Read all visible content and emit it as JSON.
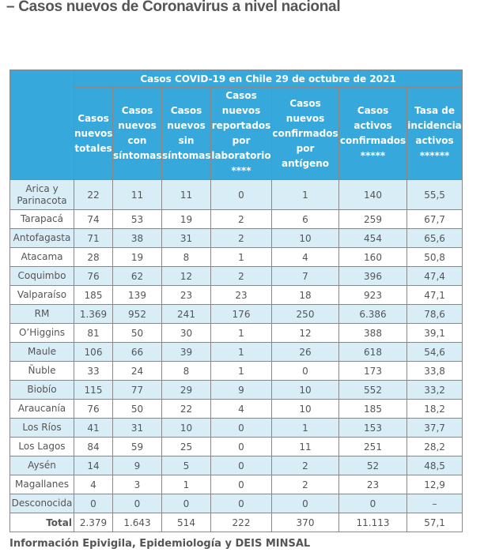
{
  "page_title": "– Casos nuevos de Coronavirus a nivel nacional",
  "table": {
    "caption": "Casos COVID-19 en Chile 29 de octubre de 2021",
    "headers": [
      "Casos nuevos totales",
      "Casos nuevos con síntomas",
      "Casos nuevos sin síntomas",
      "Casos nuevos reportados por laboratorio ****",
      "Casos nuevos confirmados por antígeno",
      "Casos activos confirmados *****",
      "Tasa de incidencia activos ******"
    ],
    "rows": [
      {
        "region": "Arica y Parinacota",
        "values": [
          "22",
          "11",
          "11",
          "0",
          "1",
          "140",
          "55,5"
        ]
      },
      {
        "region": "Tarapacá",
        "values": [
          "74",
          "53",
          "19",
          "2",
          "6",
          "259",
          "67,7"
        ]
      },
      {
        "region": "Antofagasta",
        "values": [
          "71",
          "38",
          "31",
          "2",
          "10",
          "454",
          "65,6"
        ]
      },
      {
        "region": "Atacama",
        "values": [
          "28",
          "19",
          "8",
          "1",
          "4",
          "160",
          "50,8"
        ]
      },
      {
        "region": "Coquimbo",
        "values": [
          "76",
          "62",
          "12",
          "2",
          "7",
          "396",
          "47,4"
        ]
      },
      {
        "region": "Valparaíso",
        "values": [
          "185",
          "139",
          "23",
          "23",
          "18",
          "923",
          "47,1"
        ]
      },
      {
        "region": "RM",
        "values": [
          "1.369",
          "952",
          "241",
          "176",
          "250",
          "6.386",
          "78,6"
        ]
      },
      {
        "region": "O’Higgins",
        "values": [
          "81",
          "50",
          "30",
          "1",
          "12",
          "388",
          "39,1"
        ]
      },
      {
        "region": "Maule",
        "values": [
          "106",
          "66",
          "39",
          "1",
          "26",
          "618",
          "54,6"
        ]
      },
      {
        "region": "Ñuble",
        "values": [
          "33",
          "24",
          "8",
          "1",
          "0",
          "173",
          "33,8"
        ]
      },
      {
        "region": "Biobío",
        "values": [
          "115",
          "77",
          "29",
          "9",
          "10",
          "552",
          "33,2"
        ]
      },
      {
        "region": "Araucanía",
        "values": [
          "76",
          "50",
          "22",
          "4",
          "10",
          "185",
          "18,2"
        ]
      },
      {
        "region": "Los Ríos",
        "values": [
          "41",
          "31",
          "10",
          "0",
          "1",
          "153",
          "37,7"
        ]
      },
      {
        "region": "Los Lagos",
        "values": [
          "84",
          "59",
          "25",
          "0",
          "11",
          "251",
          "28,2"
        ]
      },
      {
        "region": "Aysén",
        "values": [
          "14",
          "9",
          "5",
          "0",
          "2",
          "52",
          "48,5"
        ]
      },
      {
        "region": "Magallanes",
        "values": [
          "4",
          "3",
          "1",
          "0",
          "2",
          "23",
          "12,9"
        ]
      },
      {
        "region": "Desconocida",
        "values": [
          "0",
          "0",
          "0",
          "0",
          "0",
          "0",
          "–"
        ]
      }
    ],
    "total": {
      "label": "Total",
      "values": [
        "2.379",
        "1.643",
        "514",
        "222",
        "370",
        "11.113",
        "57,1"
      ]
    }
  },
  "footer": "Información Epivigila, Epidemiología y DEIS MINSAL"
}
